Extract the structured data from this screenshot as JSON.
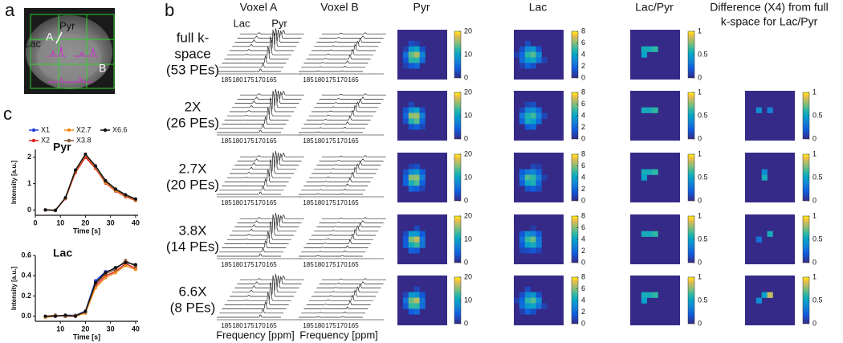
{
  "figure": {
    "panel_labels": [
      "a",
      "b",
      "c"
    ],
    "image_labels": {
      "lac": "Lac",
      "pyr": "Pyr",
      "voxel_a": "A",
      "voxel_b": "B"
    },
    "columns": [
      "Voxel A",
      "Voxel B",
      "Pyr",
      "Lac",
      "Lac/Pyr"
    ],
    "difference_header": [
      "Difference (X4) from full",
      "k-space for Lac/Pyr"
    ],
    "spectrum_peak_labels": [
      "Lac",
      "Pyr"
    ],
    "rows": [
      [
        "full k-",
        "space",
        "(53 PEs)"
      ],
      [
        "2X",
        "(26 PEs)"
      ],
      [
        "2.7X",
        "(20 PEs)"
      ],
      [
        "3.8X",
        "(14 PEs)"
      ],
      [
        "6.6X",
        "(8 PEs)"
      ]
    ],
    "spectrum_ticks": [
      185,
      180,
      175,
      170,
      165
    ],
    "spectrum_xlabel": "Frequency [ppm]",
    "colorbars": {
      "pyr": [
        0,
        10,
        20
      ],
      "lac": [
        0,
        2,
        4,
        6,
        8
      ],
      "ratio": [
        0,
        0.5,
        1
      ],
      "diff": [
        0,
        0.5,
        1
      ]
    }
  },
  "chart_data": [
    {
      "type": "line",
      "title": "Pyr",
      "xlabel": "Time [s]",
      "ylabel": "Intensity [a.u.]",
      "x": [
        4,
        8,
        12,
        16,
        20,
        24,
        28,
        32,
        36,
        40
      ],
      "xlim": [
        0,
        41
      ],
      "xticks": [
        0,
        10,
        20,
        30,
        40
      ],
      "ylim": [
        -0.2,
        2.3
      ],
      "yticks": [
        0,
        1,
        2
      ],
      "series": [
        {
          "name": "X1",
          "color": "#1f3fd6",
          "values": [
            0,
            -0.02,
            0.45,
            1.45,
            2.05,
            1.6,
            1.05,
            0.75,
            0.52,
            0.38
          ]
        },
        {
          "name": "X2",
          "color": "#e02020",
          "values": [
            0,
            -0.01,
            0.43,
            1.42,
            2.0,
            1.58,
            1.02,
            0.72,
            0.5,
            0.36
          ]
        },
        {
          "name": "X2.7",
          "color": "#f08c1e",
          "values": [
            0,
            0,
            0.44,
            1.47,
            2.08,
            1.62,
            1.04,
            0.74,
            0.52,
            0.38
          ]
        },
        {
          "name": "X3.8",
          "color": "#8a5a3a",
          "values": [
            0,
            -0.02,
            0.46,
            1.5,
            2.1,
            1.65,
            1.08,
            0.78,
            0.55,
            0.4
          ]
        },
        {
          "name": "X6.6",
          "color": "#111111",
          "values": [
            0.01,
            -0.01,
            0.47,
            1.52,
            2.12,
            1.68,
            1.12,
            0.8,
            0.58,
            0.42
          ]
        }
      ]
    },
    {
      "type": "line",
      "title": "Lac",
      "xlabel": "Time [s]",
      "ylabel": "Intensity [a.u.]",
      "x": [
        4,
        8,
        12,
        16,
        20,
        24,
        28,
        32,
        36,
        40
      ],
      "xlim": [
        0,
        41
      ],
      "xticks": [
        10,
        20,
        30,
        40
      ],
      "ylim": [
        -0.05,
        0.6
      ],
      "yticks": [
        {
          "value": 0,
          "label": "0.0"
        },
        0.2,
        0.4,
        0.6
      ],
      "series": [
        {
          "color": "#1f3fd6",
          "values": [
            0,
            0,
            0.01,
            0.01,
            0.05,
            0.35,
            0.44,
            0.47,
            0.54,
            0.5
          ]
        },
        {
          "color": "#e02020",
          "values": [
            0,
            0.01,
            0,
            0,
            0.04,
            0.3,
            0.4,
            0.44,
            0.52,
            0.47
          ]
        },
        {
          "color": "#f08c1e",
          "values": [
            -0.01,
            0,
            0.01,
            0,
            0.03,
            0.28,
            0.38,
            0.43,
            0.5,
            0.46
          ]
        },
        {
          "color": "#8a5a3a",
          "values": [
            0,
            0.01,
            0,
            0.01,
            0.04,
            0.32,
            0.42,
            0.46,
            0.55,
            0.49
          ]
        },
        {
          "color": "#111111",
          "values": [
            0,
            0,
            0.01,
            0,
            0.05,
            0.33,
            0.43,
            0.48,
            0.53,
            0.51
          ]
        }
      ]
    }
  ]
}
